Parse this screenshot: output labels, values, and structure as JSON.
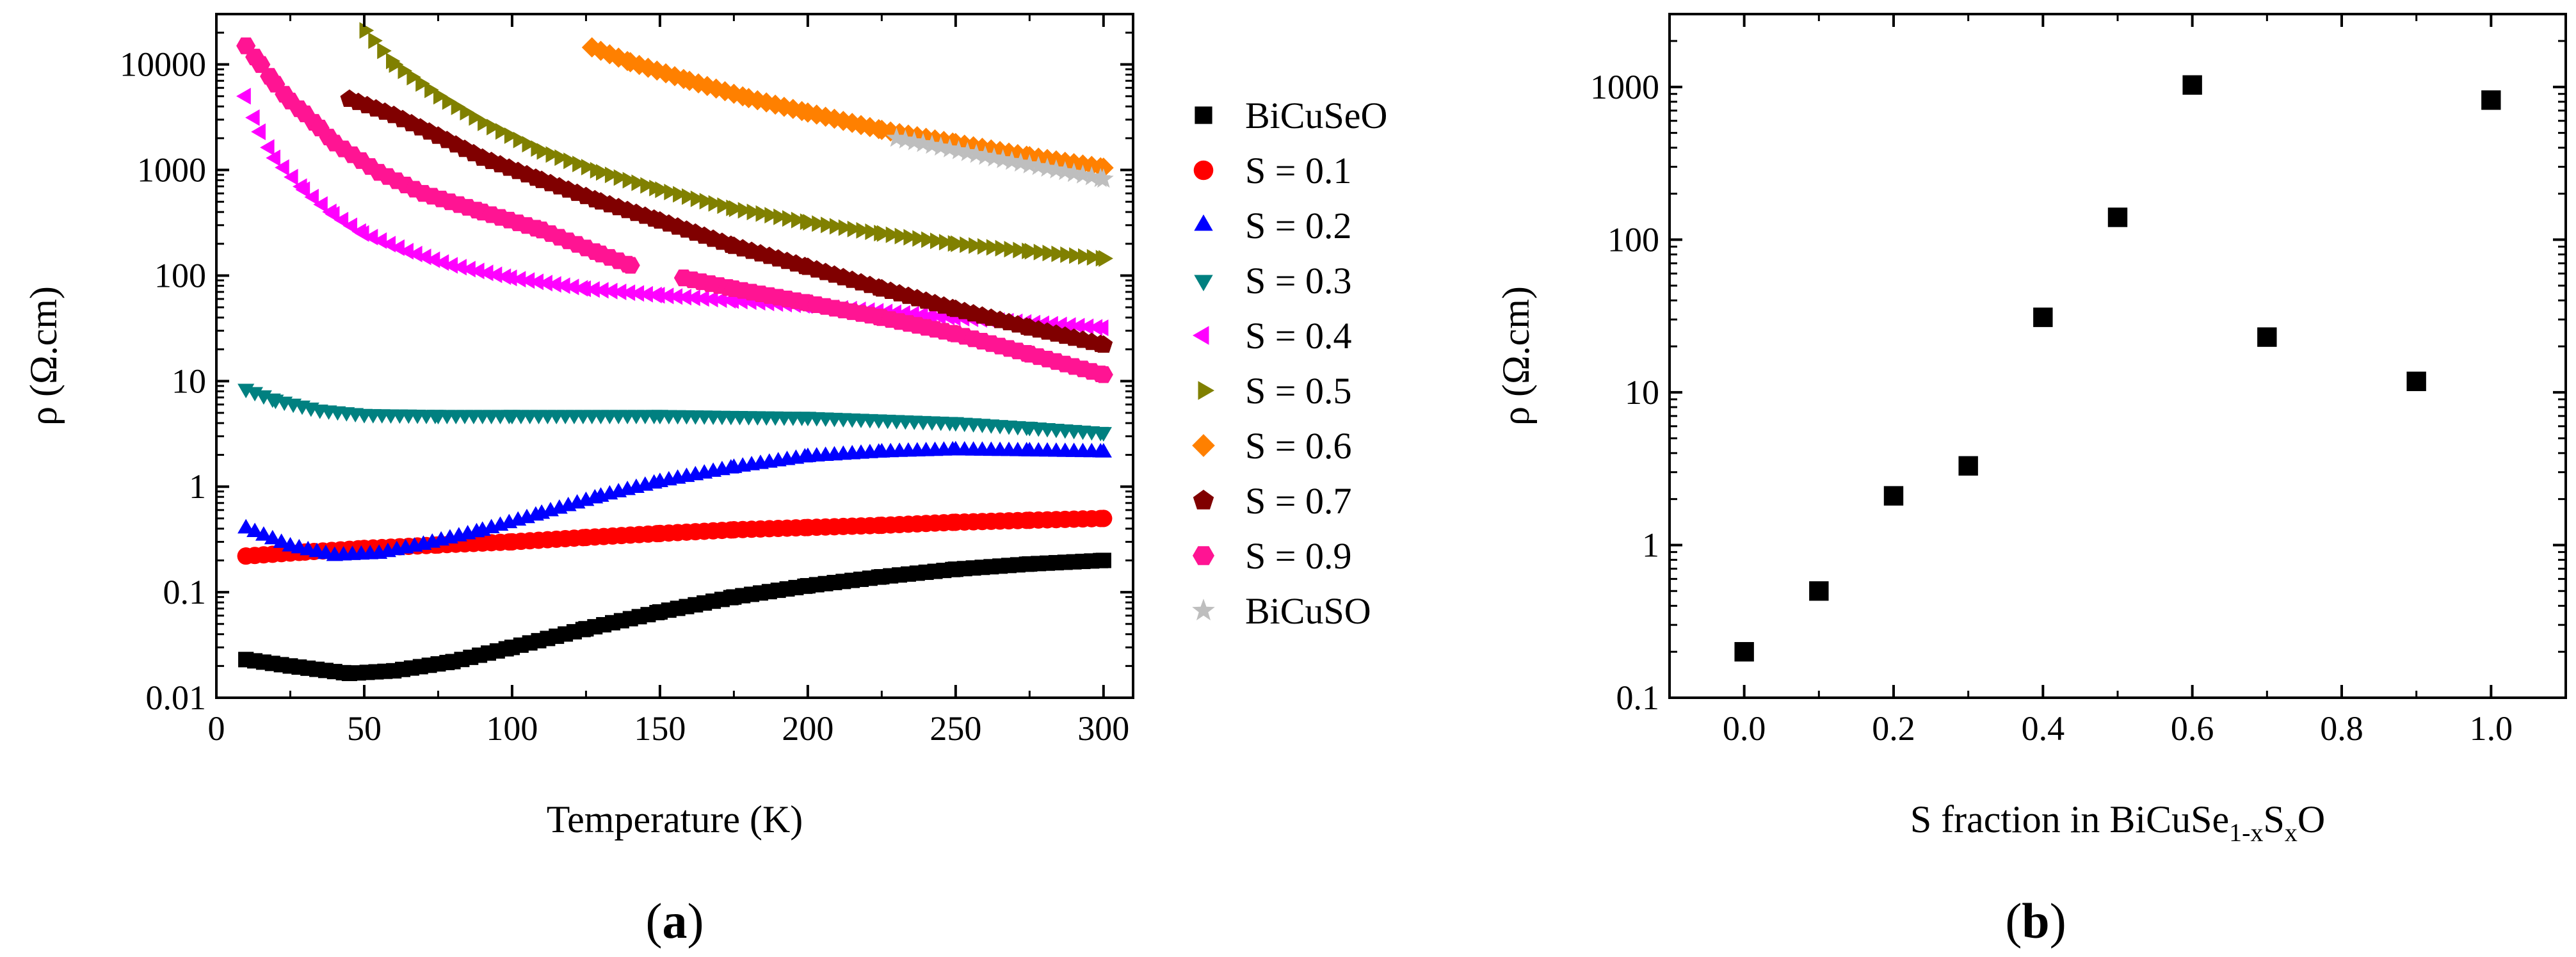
{
  "panels": [
    {
      "label_open": "(",
      "label_letter": "a",
      "label_close": ")"
    },
    {
      "label_open": "(",
      "label_letter": "b",
      "label_close": ")"
    }
  ],
  "chart_data": [
    {
      "type": "scatter",
      "title": "",
      "xlabel": "Temperature (K)",
      "ylabel": "ρ  (Ω.cm)",
      "xlim": [
        0,
        310
      ],
      "ylim": [
        0.01,
        30000
      ],
      "yscale": "log",
      "x_ticks": [
        0,
        50,
        100,
        150,
        200,
        250,
        300
      ],
      "y_ticks": [
        0.01,
        0.1,
        1,
        10,
        100,
        1000,
        10000
      ],
      "y_tick_labels": [
        "0.01",
        "0.1",
        "1",
        "10",
        "100",
        "1000",
        "10000"
      ],
      "grid": false,
      "legend_position": "right, outside plot area",
      "series": [
        {
          "name": "BiCuSeO",
          "color": "#000000",
          "marker": "square",
          "x": [
            10,
            25,
            45,
            60,
            80,
            100,
            125,
            150,
            175,
            200,
            225,
            250,
            275,
            300
          ],
          "y": [
            0.023,
            0.02,
            0.017,
            0.018,
            0.022,
            0.03,
            0.045,
            0.065,
            0.09,
            0.115,
            0.14,
            0.165,
            0.185,
            0.2
          ]
        },
        {
          "name": "S = 0.1",
          "color": "#ff0000",
          "marker": "circle",
          "x": [
            10,
            30,
            50,
            75,
            100,
            125,
            150,
            175,
            200,
            225,
            250,
            275,
            300
          ],
          "y": [
            0.22,
            0.24,
            0.26,
            0.28,
            0.3,
            0.33,
            0.36,
            0.39,
            0.41,
            0.43,
            0.46,
            0.48,
            0.5
          ]
        },
        {
          "name": "S = 0.2",
          "color": "#0000ff",
          "marker": "triangle-up",
          "x": [
            10,
            25,
            40,
            55,
            70,
            90,
            110,
            130,
            150,
            175,
            200,
            225,
            250,
            275,
            300
          ],
          "y": [
            0.4,
            0.27,
            0.22,
            0.23,
            0.28,
            0.38,
            0.55,
            0.8,
            1.1,
            1.5,
            1.9,
            2.1,
            2.2,
            2.15,
            2.1
          ]
        },
        {
          "name": "S = 0.3",
          "color": "#008080",
          "marker": "triangle-down",
          "x": [
            10,
            20,
            35,
            50,
            75,
            100,
            150,
            200,
            250,
            275,
            300
          ],
          "y": [
            8.5,
            6.7,
            5.4,
            4.9,
            4.8,
            4.8,
            4.8,
            4.6,
            4.1,
            3.7,
            3.3
          ]
        },
        {
          "name": "S = 0.4",
          "color": "#ff00ff",
          "marker": "triangle-left",
          "x": [
            10,
            15,
            20,
            30,
            40,
            50,
            65,
            80,
            100,
            125,
            150,
            175,
            200,
            250,
            300
          ],
          "y": [
            5000,
            2300,
            1300,
            650,
            380,
            250,
            170,
            125,
            95,
            75,
            65,
            58,
            52,
            40,
            32
          ]
        },
        {
          "name": "S = 0.5",
          "color": "#808000",
          "marker": "triangle-right",
          "x": [
            50,
            60,
            75,
            90,
            110,
            130,
            150,
            175,
            200,
            225,
            250,
            275,
            300
          ],
          "y": [
            21000,
            10000,
            5000,
            2800,
            1500,
            950,
            650,
            430,
            320,
            250,
            200,
            170,
            145
          ]
        },
        {
          "name": "S = 0.6",
          "color": "#ff8000",
          "marker": "diamond",
          "x": [
            127,
            140,
            160,
            180,
            200,
            225,
            250,
            275,
            300
          ],
          "y": [
            14500,
            10500,
            7000,
            4800,
            3500,
            2400,
            1800,
            1350,
            1050
          ]
        },
        {
          "name": "S = 0.7",
          "color": "#800000",
          "marker": "pentagon",
          "x": [
            45,
            60,
            75,
            90,
            110,
            130,
            150,
            175,
            200,
            225,
            250,
            275,
            300
          ],
          "y": [
            4700,
            3300,
            2100,
            1300,
            800,
            500,
            330,
            190,
            120,
            75,
            48,
            32,
            22
          ]
        },
        {
          "name": "S = 0.9",
          "color": "#ff1493",
          "marker": "hexagon",
          "x": [
            10,
            15,
            20,
            25,
            30,
            35,
            40,
            55,
            70,
            90,
            110,
            130,
            140,
            158,
            175,
            200,
            225,
            250,
            275,
            300
          ],
          "y": [
            15000,
            10000,
            6500,
            4500,
            3400,
            2500,
            1800,
            950,
            600,
            400,
            270,
            160,
            125,
            95,
            75,
            55,
            40,
            28,
            18,
            11.5
          ]
        },
        {
          "name": "BiCuSO",
          "color": "#bebebe",
          "marker": "star",
          "x": [
            230,
            245,
            260,
            275,
            290,
            300
          ],
          "y": [
            2000,
            1650,
            1350,
            1120,
            930,
            820
          ]
        }
      ]
    },
    {
      "type": "scatter",
      "title": "",
      "xlabel": "S fraction in BiCuSe1-xSxO",
      "xlabel_parts": {
        "base1": "S fraction in BiCuSe",
        "sub1": "1-x",
        "mid": "S",
        "sub2": "x",
        "end": "O"
      },
      "ylabel": "ρ  (Ω.cm)",
      "xlim": [
        -0.1,
        1.1
      ],
      "ylim": [
        0.1,
        3000
      ],
      "yscale": "log",
      "x_ticks": [
        0.0,
        0.2,
        0.4,
        0.6,
        0.8,
        1.0
      ],
      "x_tick_labels": [
        "0.0",
        "0.2",
        "0.4",
        "0.6",
        "0.8",
        "1.0"
      ],
      "y_ticks": [
        0.1,
        1,
        10,
        100,
        1000
      ],
      "y_tick_labels": [
        "0.1",
        "1",
        "10",
        "100",
        "1000"
      ],
      "grid": false,
      "series": [
        {
          "color": "#000000",
          "marker": "square",
          "x": [
            0.0,
            0.1,
            0.2,
            0.3,
            0.4,
            0.5,
            0.6,
            0.7,
            0.9,
            1.0
          ],
          "y": [
            0.2,
            0.5,
            2.1,
            3.3,
            31,
            140,
            1030,
            23,
            11.8,
            820
          ]
        }
      ]
    }
  ]
}
